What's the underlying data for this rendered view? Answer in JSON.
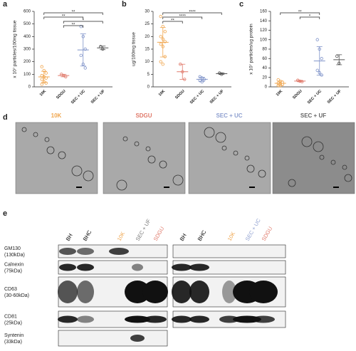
{
  "chart_data": [
    {
      "type": "scatter",
      "panel": "a",
      "y_label": "x 10⁷ particles/100mg tissue",
      "categories": [
        "10K",
        "SDGU",
        "SEC + UC",
        "SEC + UF"
      ],
      "colors": [
        "#f0a64e",
        "#e07a6b",
        "#7f93c9",
        "#555555"
      ],
      "values": [
        [
          160,
          130,
          110,
          90,
          80,
          70,
          60,
          40,
          30,
          20
        ],
        [
          100,
          90,
          80
        ],
        [
          480,
          400,
          300,
          250,
          180,
          150
        ],
        [
          320,
          300
        ]
      ],
      "ylim": [
        0,
        600
      ],
      "yticks": [
        0,
        100,
        200,
        300,
        400,
        500,
        600
      ],
      "significance": [
        {
          "text": "**",
          "from": "10K",
          "to": "SEC + UF"
        },
        {
          "text": "**",
          "from": "10K",
          "to": "SEC + UC"
        },
        {
          "text": "*",
          "from": "SDGU",
          "to": "SEC + UF"
        },
        {
          "text": "**",
          "from": "SDGU",
          "to": "SEC + UC"
        }
      ]
    },
    {
      "type": "scatter",
      "panel": "b",
      "y_label": "ug/100mg tissue",
      "categories": [
        "10K",
        "SDGU",
        "SEC + UC",
        "SEC + UF"
      ],
      "colors": [
        "#f0a64e",
        "#e07a6b",
        "#7f93c9",
        "#555555"
      ],
      "values": [
        [
          28,
          24,
          22,
          20,
          19,
          18,
          17,
          16,
          12,
          10,
          9
        ],
        [
          9,
          6,
          3
        ],
        [
          4,
          3.5,
          3,
          2.5,
          2
        ],
        [
          5.5,
          5
        ]
      ],
      "ylim": [
        0,
        30
      ],
      "yticks": [
        0,
        5,
        10,
        15,
        20,
        25,
        30
      ],
      "significance": [
        {
          "text": "****",
          "from": "10K",
          "to": "SEC + UF"
        },
        {
          "text": "****",
          "from": "10K",
          "to": "SEC + UC"
        },
        {
          "text": "**",
          "from": "10K",
          "to": "SDGU"
        }
      ]
    },
    {
      "type": "scatter",
      "panel": "c",
      "y_label": "x 10⁷ particles/ug protein",
      "categories": [
        "10K",
        "SDGU",
        "SEC + UC",
        "SEC + UF"
      ],
      "colors": [
        "#f0a64e",
        "#e07a6b",
        "#7f93c9",
        "#555555"
      ],
      "values": [
        [
          15,
          12,
          10,
          8,
          6,
          5,
          3,
          2
        ],
        [
          14,
          12,
          11
        ],
        [
          100,
          80,
          60,
          35,
          30,
          25
        ],
        [
          65,
          50
        ]
      ],
      "ylim": [
        0,
        160
      ],
      "yticks": [
        0,
        20,
        40,
        60,
        80,
        100,
        120,
        140,
        160
      ],
      "significance": [
        {
          "text": "**",
          "from": "10K",
          "to": "SEC + UC"
        },
        {
          "text": "*",
          "from": "SDGU",
          "to": "SEC + UC"
        }
      ]
    }
  ],
  "micrographs": {
    "panel": "d",
    "images": [
      {
        "label": "10K",
        "color": "#f0a64e"
      },
      {
        "label": "SDGU",
        "color": "#e07a6b"
      },
      {
        "label": "SEC + UC",
        "color": "#8fa0d0"
      },
      {
        "label": "SEC + UF",
        "color": "#666666"
      }
    ]
  },
  "blots": {
    "panel": "e",
    "left_headers": [
      {
        "label": "BH",
        "color": "#000000"
      },
      {
        "label": "BHC",
        "color": "#000000"
      },
      {
        "label": "10K",
        "color": "#f0a64e"
      },
      {
        "label": "SEC + UF",
        "color": "#777777"
      },
      {
        "label": "SDGU",
        "color": "#e07a6b"
      }
    ],
    "right_headers": [
      {
        "label": "BH",
        "color": "#000000"
      },
      {
        "label": "BHC",
        "color": "#000000"
      },
      {
        "label": "10K",
        "color": "#f0a64e"
      },
      {
        "label": "SEC + UC",
        "color": "#8fa0d0"
      },
      {
        "label": "SDGU",
        "color": "#e07a6b"
      }
    ],
    "rows": [
      {
        "name": "GM130",
        "size": "(130kDa)"
      },
      {
        "name": "Calnexin",
        "size": "(75kDa)"
      },
      {
        "name": "CD63",
        "size": "(30-60kDa)"
      },
      {
        "name": "CD81",
        "size": "(25kDa)"
      },
      {
        "name": "Syntenin",
        "size": "(33kDa)"
      }
    ]
  }
}
